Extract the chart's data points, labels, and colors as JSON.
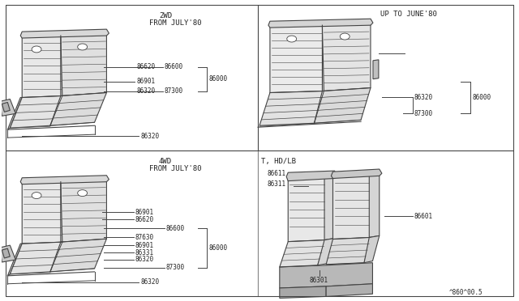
{
  "bg_color": "#ffffff",
  "line_color": "#444444",
  "text_color": "#222222",
  "title_top_left": "2WD\nFROM JULY'80",
  "title_top_right": "UP TO JUNE'80",
  "title_bot_left": "4WD\nFROM JULY'80",
  "title_bot_right": "T, HD/LB",
  "footer": "^860^00.5",
  "fs": 5.5
}
